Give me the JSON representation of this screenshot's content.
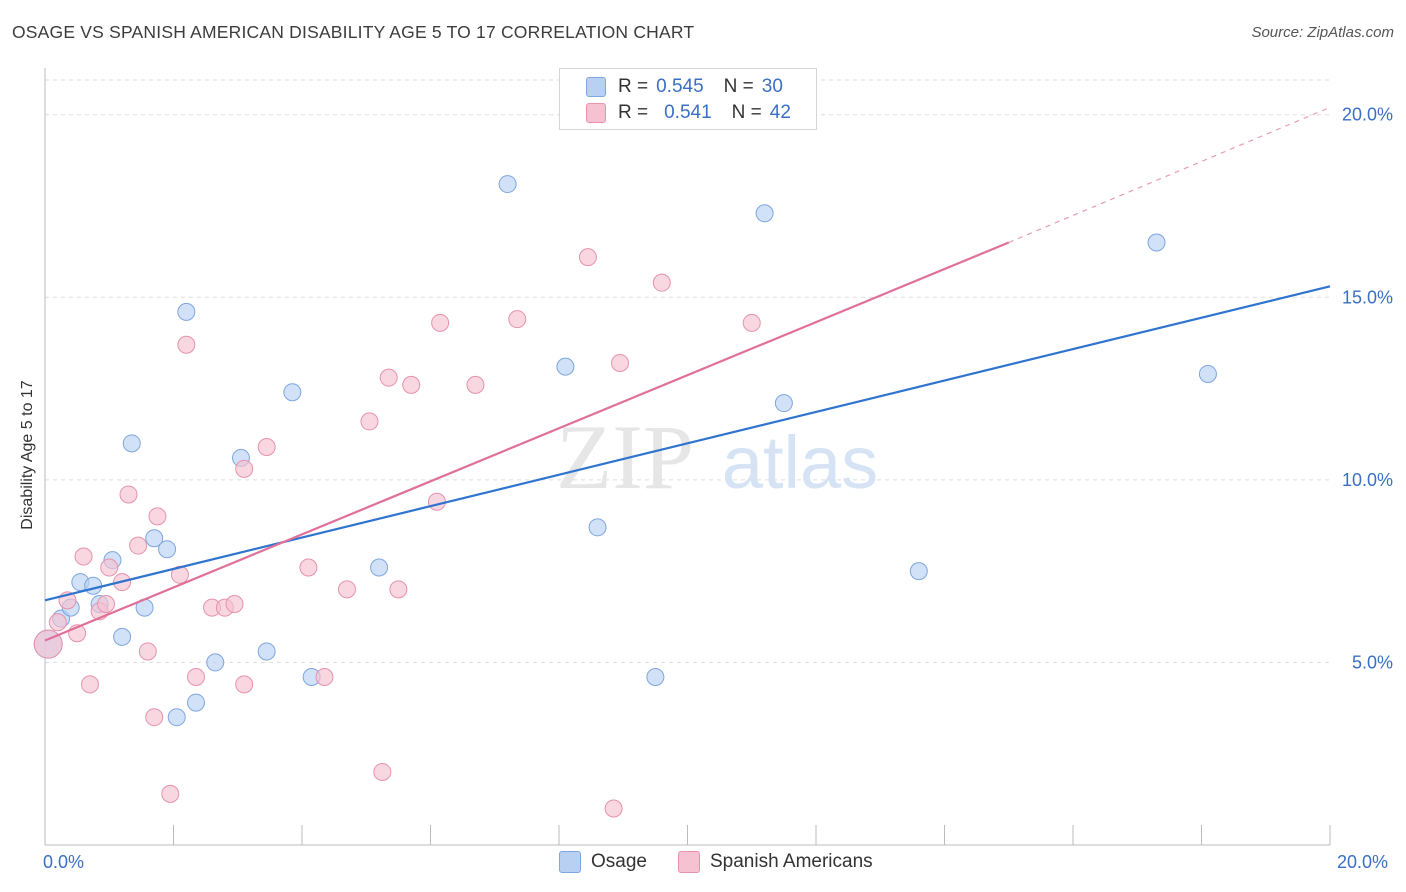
{
  "title": "OSAGE VS SPANISH AMERICAN DISABILITY AGE 5 TO 17 CORRELATION CHART",
  "source": "Source: ZipAtlas.com",
  "watermark": {
    "zip": "ZIP",
    "atlas": "atlas"
  },
  "legend_top": [
    {
      "r_label": "R =",
      "r_value": "0.545",
      "n_label": "N =",
      "n_value": "30"
    },
    {
      "r_label": "R =",
      "r_value": "0.541",
      "n_label": "N =",
      "n_value": "42"
    }
  ],
  "legend_bottom": [
    "Osage",
    "Spanish Americans"
  ],
  "x_tick_left": "0.0%",
  "x_tick_right": "20.0%",
  "colors": {
    "osage_fill": "#b8d1f2",
    "osage_stroke": "#7ea6dd",
    "osage_line": "#2f74cf",
    "spanish_fill": "#f6c1d1",
    "spanish_stroke": "#e692ad",
    "spanish_line": "#e0709a",
    "axis_label": "#3a6fc4",
    "grid": "#dddddd"
  },
  "chart_data": {
    "type": "scatter",
    "title": "OSAGE VS SPANISH AMERICAN DISABILITY AGE 5 TO 17 CORRELATION CHART",
    "xlabel": "",
    "ylabel": "Disability Age 5 to 17",
    "xlim": [
      0,
      20
    ],
    "ylim": [
      0,
      20
    ],
    "y_ticks": [
      5,
      10,
      15,
      20
    ],
    "y_tick_labels": [
      "5.0%",
      "10.0%",
      "15.0%",
      "20.0%"
    ],
    "grid": true,
    "legend_position": "top-center",
    "series": [
      {
        "name": "Osage",
        "r": 0.545,
        "n": 30,
        "trend": {
          "x": [
            0,
            20
          ],
          "y": [
            6.7,
            15.3
          ]
        },
        "points": [
          [
            0.05,
            5.5
          ],
          [
            0.25,
            6.2
          ],
          [
            0.4,
            6.5
          ],
          [
            0.55,
            7.2
          ],
          [
            0.75,
            7.1
          ],
          [
            0.85,
            6.6
          ],
          [
            1.05,
            7.8
          ],
          [
            1.2,
            5.7
          ],
          [
            1.35,
            11.0
          ],
          [
            1.55,
            6.5
          ],
          [
            1.7,
            8.4
          ],
          [
            1.9,
            8.1
          ],
          [
            2.05,
            3.5
          ],
          [
            2.2,
            14.6
          ],
          [
            2.35,
            3.9
          ],
          [
            2.65,
            5.0
          ],
          [
            3.05,
            10.6
          ],
          [
            3.45,
            5.3
          ],
          [
            3.85,
            12.4
          ],
          [
            4.15,
            4.6
          ],
          [
            5.2,
            7.6
          ],
          [
            7.2,
            18.1
          ],
          [
            8.1,
            13.1
          ],
          [
            8.6,
            8.7
          ],
          [
            9.5,
            4.6
          ],
          [
            11.2,
            17.3
          ],
          [
            11.5,
            12.1
          ],
          [
            13.6,
            7.5
          ],
          [
            17.3,
            16.5
          ],
          [
            18.1,
            12.9
          ]
        ]
      },
      {
        "name": "Spanish Americans",
        "r": 0.541,
        "n": 42,
        "trend": {
          "x": [
            0,
            15
          ],
          "y": [
            5.6,
            16.5
          ]
        },
        "trend_dashed": {
          "x": [
            15,
            20
          ],
          "y": [
            16.5,
            20.2
          ]
        },
        "points": [
          [
            0.05,
            5.5
          ],
          [
            0.2,
            6.1
          ],
          [
            0.35,
            6.7
          ],
          [
            0.5,
            5.8
          ],
          [
            0.6,
            7.9
          ],
          [
            0.7,
            4.4
          ],
          [
            0.85,
            6.4
          ],
          [
            0.95,
            6.6
          ],
          [
            1.0,
            7.6
          ],
          [
            1.2,
            7.2
          ],
          [
            1.3,
            9.6
          ],
          [
            1.45,
            8.2
          ],
          [
            1.6,
            5.3
          ],
          [
            1.7,
            3.5
          ],
          [
            1.75,
            9.0
          ],
          [
            1.95,
            1.4
          ],
          [
            2.1,
            7.4
          ],
          [
            2.2,
            13.7
          ],
          [
            2.35,
            4.6
          ],
          [
            2.6,
            6.5
          ],
          [
            2.8,
            6.5
          ],
          [
            2.95,
            6.6
          ],
          [
            3.1,
            4.4
          ],
          [
            3.1,
            10.3
          ],
          [
            3.45,
            10.9
          ],
          [
            4.1,
            7.6
          ],
          [
            4.35,
            4.6
          ],
          [
            4.7,
            7.0
          ],
          [
            5.05,
            11.6
          ],
          [
            5.25,
            2.0
          ],
          [
            5.35,
            12.8
          ],
          [
            5.5,
            7.0
          ],
          [
            5.7,
            12.6
          ],
          [
            6.1,
            9.4
          ],
          [
            6.15,
            14.3
          ],
          [
            6.7,
            12.6
          ],
          [
            7.35,
            14.4
          ],
          [
            8.45,
            16.1
          ],
          [
            8.85,
            1.0
          ],
          [
            8.95,
            13.2
          ],
          [
            9.6,
            15.4
          ],
          [
            11.0,
            14.3
          ]
        ]
      }
    ]
  }
}
